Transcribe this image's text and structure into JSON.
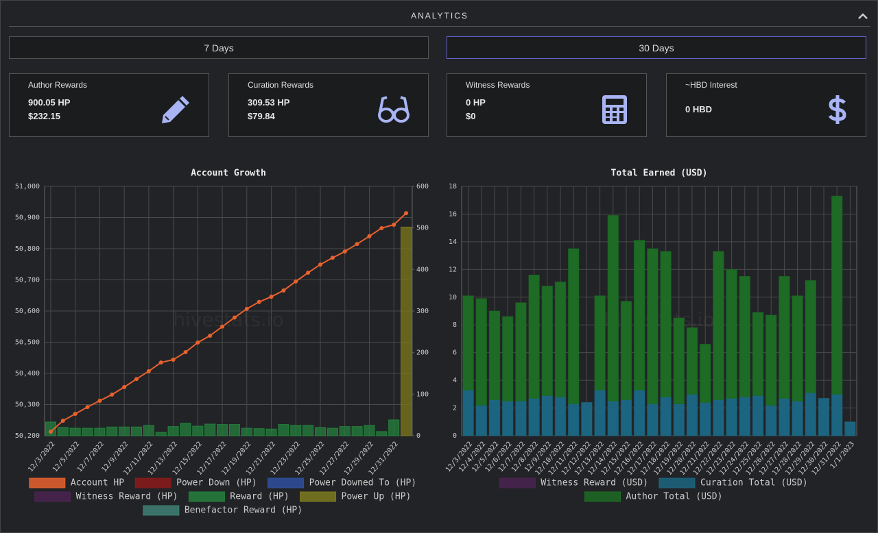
{
  "header": {
    "title": "ANALYTICS"
  },
  "buttons": [
    "7 Days",
    "30 Days"
  ],
  "cards": [
    {
      "label": "Author Rewards",
      "hp": "900.05 HP",
      "usd": "$232.15"
    },
    {
      "label": "Curation Rewards",
      "hp": "309.53 HP",
      "usd": "$79.84"
    },
    {
      "label": "Witness Rewards",
      "hp": "0 HP",
      "usd": "$0"
    },
    {
      "label": "~HBD Interest",
      "hp": "0 HBD"
    }
  ],
  "chart_data": [
    {
      "type": "combo",
      "title": "Account Growth",
      "watermark": "hivestats.io",
      "grid": true,
      "categories": [
        "12/3/2022",
        null,
        "12/5/2022",
        null,
        "12/7/2022",
        null,
        "12/9/2022",
        null,
        "12/11/2022",
        null,
        "12/13/2022",
        null,
        "12/15/2022",
        null,
        "12/17/2022",
        null,
        "12/19/2022",
        null,
        "12/21/2022",
        null,
        "12/23/2022",
        null,
        "12/25/2022",
        null,
        "12/27/2022",
        null,
        "12/29/2022",
        null,
        "12/31/2022",
        null
      ],
      "ylim": [
        50200,
        51000
      ],
      "yticks": [
        {
          "value": 50200,
          "label": "50,200"
        },
        {
          "value": 50300,
          "label": "50,300"
        },
        {
          "value": 50400,
          "label": "50,400"
        },
        {
          "value": 50500,
          "label": "50,500"
        },
        {
          "value": 50600,
          "label": "50,600"
        },
        {
          "value": 50700,
          "label": "50,700"
        },
        {
          "value": 50800,
          "label": "50,800"
        },
        {
          "value": 50900,
          "label": "50,900"
        },
        {
          "value": 51000,
          "label": "51,000"
        }
      ],
      "y2lim": [
        0,
        600
      ],
      "y2ticks": [
        0,
        100,
        200,
        300,
        400,
        500,
        600
      ],
      "series": [
        {
          "name": "Account HP",
          "color": "#e8622e",
          "type": "line",
          "values": [
            50213,
            50248,
            50270,
            50292,
            50312,
            50332,
            50356,
            50382,
            50407,
            50435,
            50444,
            50468,
            50499,
            50521,
            50550,
            50579,
            50607,
            50629,
            50646,
            50666,
            50695,
            50723,
            50749,
            50771,
            50791,
            50815,
            50840,
            50866,
            50877,
            50914
          ]
        },
        {
          "name": "Power Down (HP)",
          "color": "#8b1a1a"
        },
        {
          "name": "Power Downed To (HP)",
          "color": "#2f4f9f"
        },
        {
          "name": "Witness Reward (HP)",
          "color": "#4a2352"
        },
        {
          "name": "Reward (HP)",
          "color": "#24803d",
          "type": "bar",
          "axis": "y2",
          "values": [
            33,
            20,
            18,
            18,
            18,
            21,
            21,
            21,
            25,
            8,
            22,
            30,
            23,
            28,
            27,
            27,
            18,
            17,
            16,
            27,
            25,
            25,
            20,
            18,
            22,
            22,
            25,
            10,
            38,
            null
          ]
        },
        {
          "name": "Power Up (HP)",
          "color": "#7d7a1e",
          "type": "bar",
          "axis": "y2",
          "values": [
            null,
            null,
            null,
            null,
            null,
            null,
            null,
            null,
            null,
            null,
            null,
            null,
            null,
            null,
            null,
            null,
            null,
            null,
            null,
            null,
            null,
            null,
            null,
            null,
            null,
            null,
            null,
            null,
            null,
            502
          ]
        },
        {
          "name": "Benefactor Reward (HP)",
          "color": "#3e7f75"
        }
      ]
    },
    {
      "type": "stacked",
      "title": "Total Earned (USD)",
      "watermark": "hivestats.io",
      "grid": true,
      "categories": [
        "12/3/2022",
        "12/4/2022",
        "12/5/2022",
        "12/6/2022",
        "12/7/2022",
        "12/8/2022",
        "12/9/2022",
        "12/10/2022",
        "12/11/2022",
        "12/12/2022",
        "12/13/2022",
        "12/14/2022",
        "12/15/2022",
        "12/16/2022",
        "12/17/2022",
        "12/18/2022",
        "12/19/2022",
        "12/20/2022",
        "12/21/2022",
        "12/22/2022",
        "12/23/2022",
        "12/24/2022",
        "12/25/2022",
        "12/26/2022",
        "12/27/2022",
        "12/28/2022",
        "12/29/2022",
        "12/30/2022",
        "12/31/2022",
        "1/1/2023"
      ],
      "ylim": [
        0,
        18
      ],
      "yticks": [
        0,
        2,
        4,
        6,
        8,
        10,
        12,
        14,
        16,
        18
      ],
      "series": [
        {
          "name": "Witness Reward (USD)",
          "color": "#4a2352"
        },
        {
          "name": "Curation Total (USD)",
          "color": "#1c6580",
          "values": [
            3.3,
            2.2,
            2.6,
            2.5,
            2.5,
            2.7,
            2.9,
            2.8,
            2.3,
            2.4,
            3.3,
            2.5,
            2.6,
            3.3,
            2.3,
            2.8,
            2.3,
            3.0,
            2.4,
            2.6,
            2.7,
            2.8,
            2.9,
            2.2,
            2.7,
            2.5,
            3.1,
            2.7,
            3.0,
            1.0
          ]
        },
        {
          "name": "Author Total (USD)",
          "color": "#1d6b24",
          "values": [
            6.8,
            7.7,
            6.4,
            6.1,
            7.1,
            8.9,
            7.9,
            8.3,
            11.2,
            0,
            6.8,
            13.4,
            7.1,
            10.8,
            11.2,
            10.5,
            6.2,
            4.8,
            4.2,
            10.7,
            9.3,
            8.7,
            6.0,
            6.5,
            8.8,
            7.6,
            8.1,
            0,
            14.3,
            0
          ]
        }
      ]
    }
  ]
}
